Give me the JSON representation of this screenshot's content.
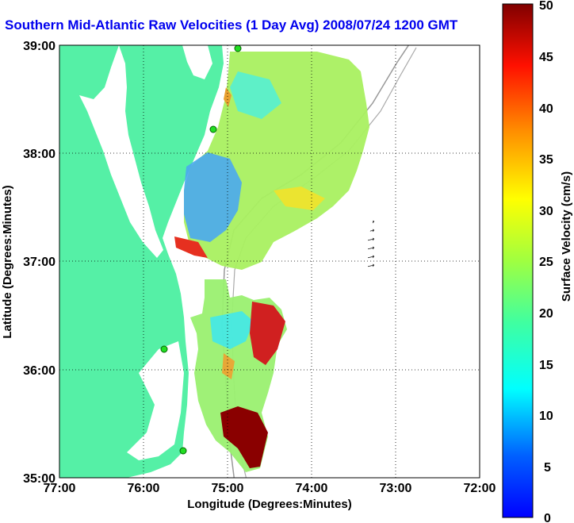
{
  "title": "Southern Mid-Atlantic Raw Velocities (1 Day Avg) 2008/07/24 1200 GMT",
  "axes": {
    "xlabel": "Longitude (Degrees:Minutes)",
    "ylabel": "Latitude (Degrees:Minutes)",
    "x_ticks": [
      "77:00",
      "76:00",
      "75:00",
      "74:00",
      "73:00",
      "72:00"
    ],
    "y_ticks": [
      "39:00",
      "38:00",
      "37:00",
      "36:00",
      "35:00"
    ],
    "xlim": [
      -77,
      -72
    ],
    "ylim": [
      35,
      39
    ],
    "grid": true
  },
  "colorbar": {
    "label": "Surface Velocity (cm/s)",
    "ticks": [
      "50",
      "45",
      "40",
      "35",
      "30",
      "25",
      "20",
      "15",
      "10",
      "5",
      "0"
    ],
    "range": [
      0,
      50
    ],
    "colormap": "jet"
  },
  "colors": {
    "land": "#55f0a6",
    "title": "#0000ee",
    "vector": "#000000",
    "site_marker": "#22dd22"
  }
}
